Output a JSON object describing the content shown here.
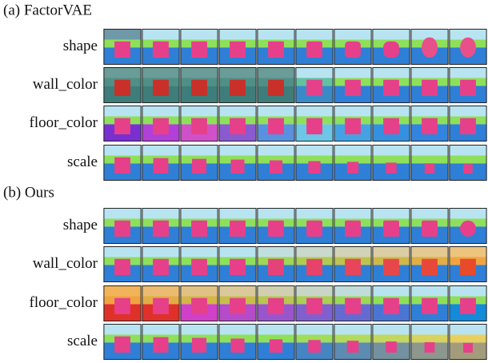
{
  "panels": [
    {
      "title": "(a) FactorVAE",
      "rows": [
        "shape",
        "wall_color",
        "floor_color",
        "scale"
      ]
    },
    {
      "title": "(b) Ours",
      "rows": [
        "shape",
        "wall_color",
        "floor_color",
        "scale"
      ]
    }
  ]
}
